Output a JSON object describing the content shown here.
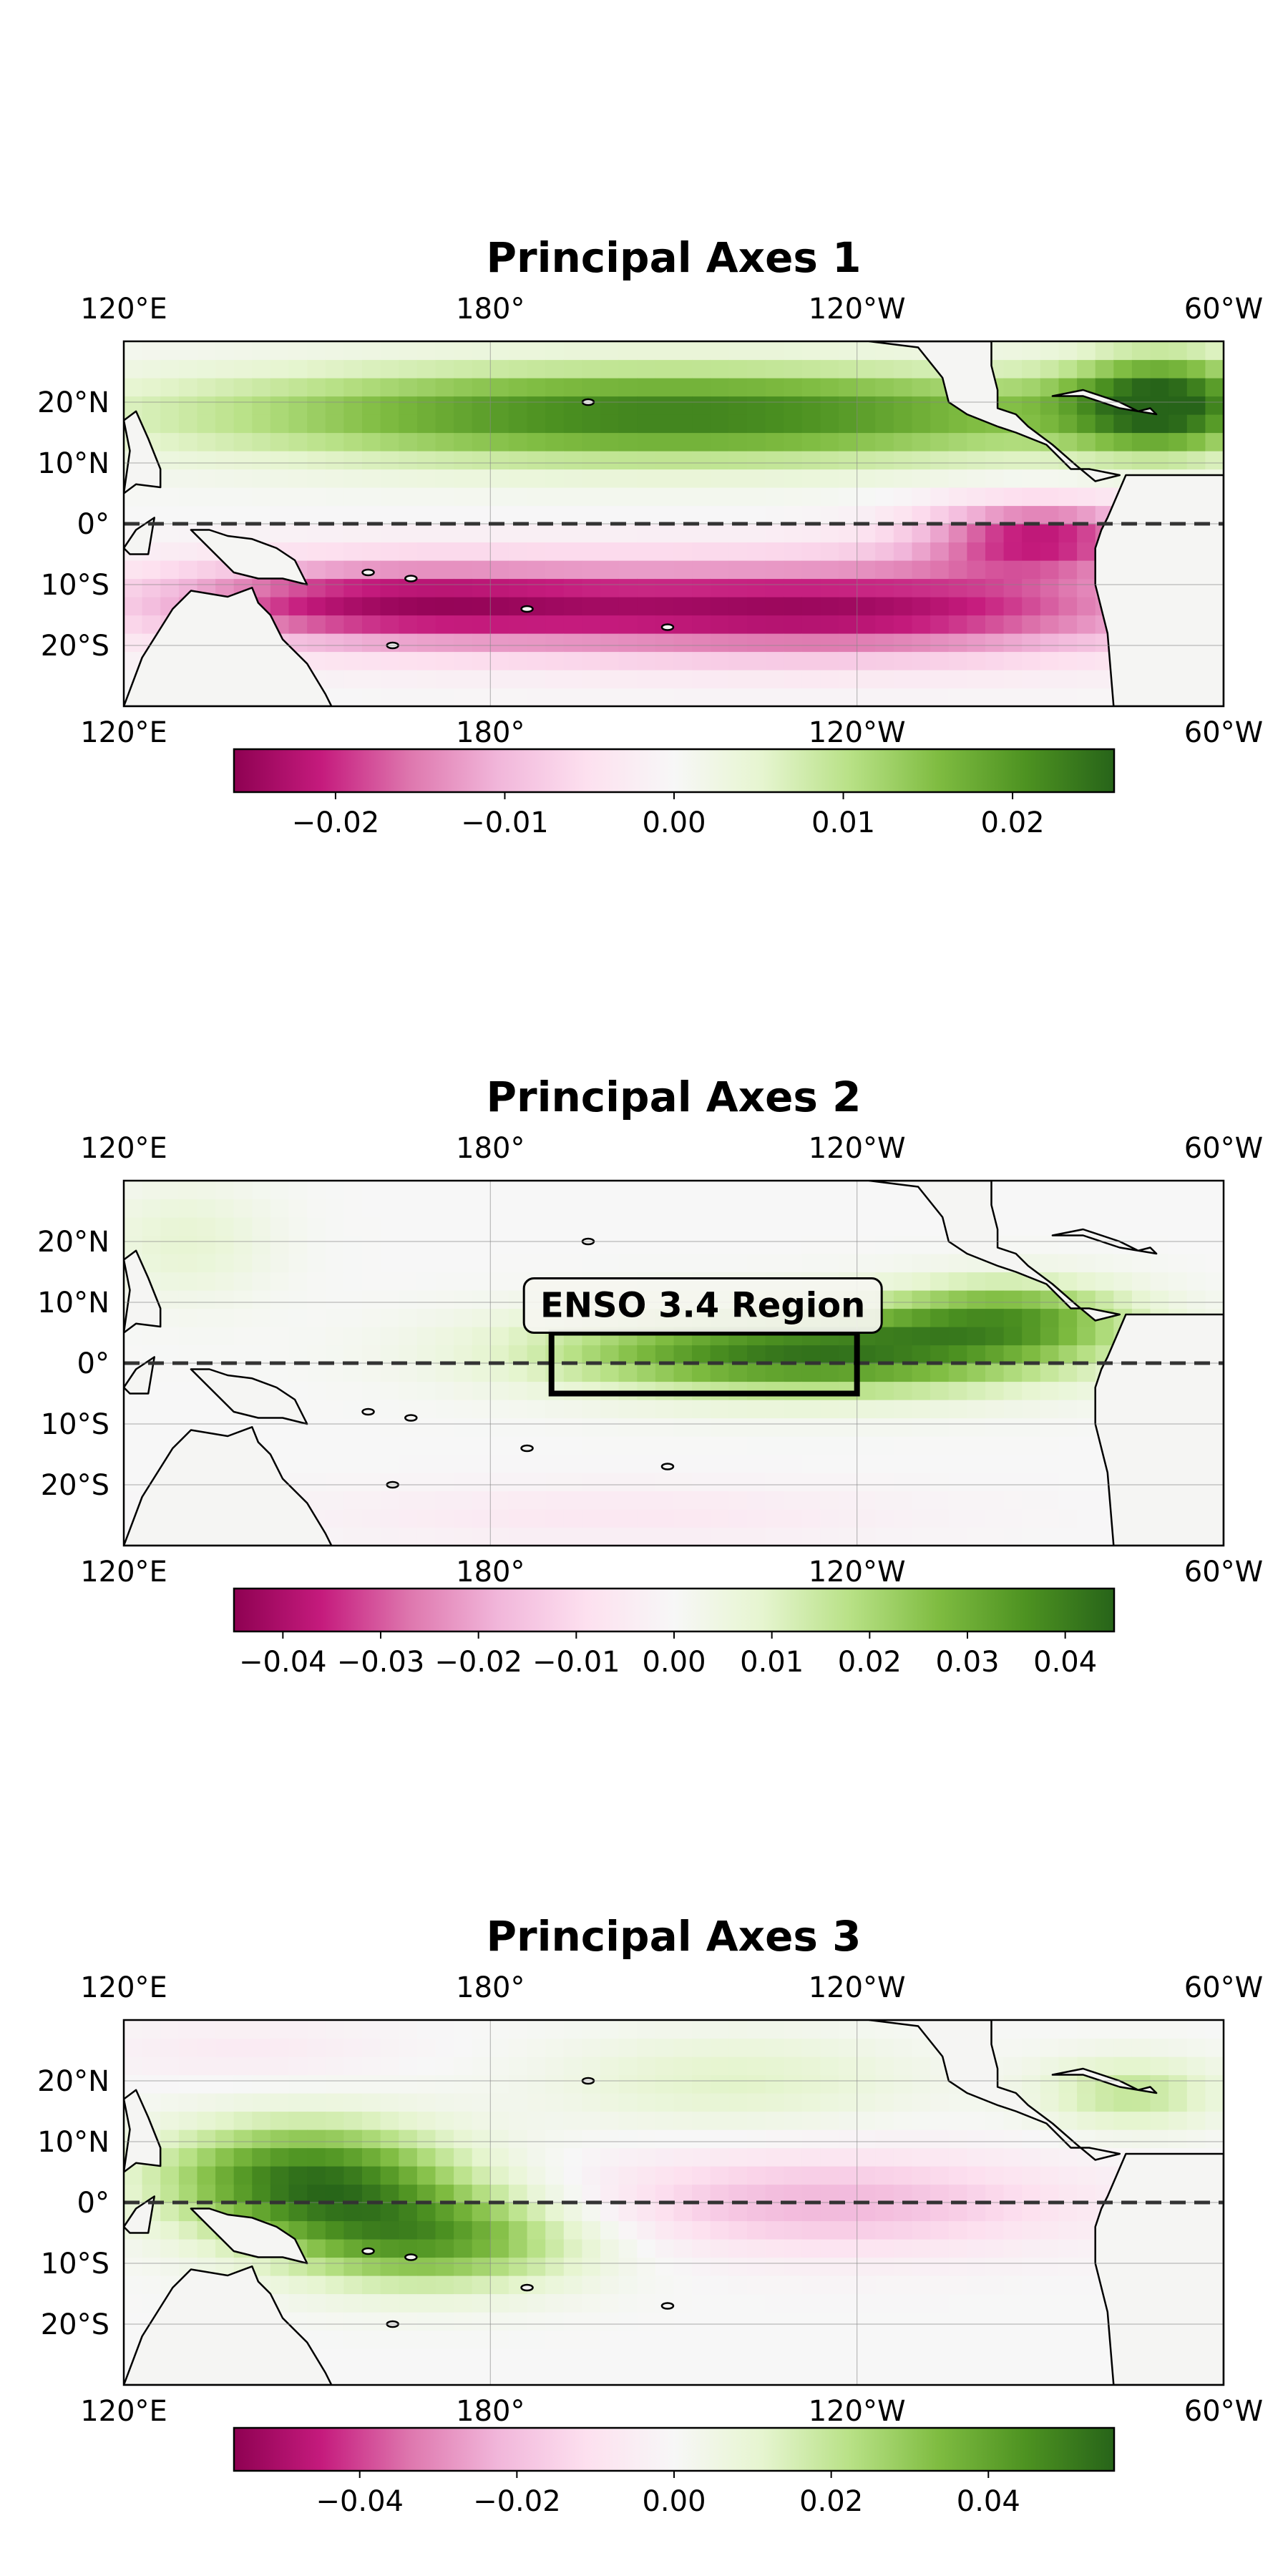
{
  "chart_data": [
    {
      "type": "heatmap",
      "title": "Principal Axes 1",
      "map_extent": {
        "lon": [
          120,
          300
        ],
        "lat": [
          -30,
          30
        ]
      },
      "x_ticks": [
        "120°E",
        "180°",
        "120°W",
        "60°W"
      ],
      "x_tick_values": [
        120,
        180,
        240,
        300
      ],
      "y_ticks": [
        "20°N",
        "10°N",
        "0°",
        "10°S",
        "20°S"
      ],
      "y_tick_values": [
        20,
        10,
        0,
        -10,
        -20
      ],
      "grid": true,
      "equator_line": "dashed",
      "colormap": "PiYG",
      "colorbar": {
        "range": [
          -0.026,
          0.026
        ],
        "tick_values": [
          -0.02,
          -0.01,
          0.0,
          0.01,
          0.02
        ],
        "tick_labels": [
          "−0.02",
          "−0.01",
          "0.00",
          "0.01",
          "0.02"
        ]
      },
      "pattern": {
        "components": [
          {
            "lon": 210,
            "lat": 18,
            "sigma_lon": 80,
            "sigma_lat": 8,
            "value": 0.023
          },
          {
            "lon": 235,
            "lat": -14,
            "sigma_lon": 60,
            "sigma_lat": 8,
            "value": -0.024
          },
          {
            "lon": 160,
            "lat": -13,
            "sigma_lon": 40,
            "sigma_lat": 7,
            "value": -0.019
          },
          {
            "lon": 270,
            "lat": -2,
            "sigma_lon": 20,
            "sigma_lat": 6,
            "value": -0.02
          },
          {
            "lon": 290,
            "lat": 20,
            "sigma_lon": 15,
            "sigma_lat": 8,
            "value": 0.022
          }
        ],
        "clip": 0.026
      }
    },
    {
      "type": "heatmap",
      "title": "Principal Axes 2",
      "map_extent": {
        "lon": [
          120,
          300
        ],
        "lat": [
          -30,
          30
        ]
      },
      "x_ticks": [
        "120°E",
        "180°",
        "120°W",
        "60°W"
      ],
      "x_tick_values": [
        120,
        180,
        240,
        300
      ],
      "y_ticks": [
        "20°N",
        "10°N",
        "0°",
        "10°S",
        "20°S"
      ],
      "y_tick_values": [
        20,
        10,
        0,
        -10,
        -20
      ],
      "grid": true,
      "equator_line": "dashed",
      "colormap": "PiYG",
      "colorbar": {
        "range": [
          -0.045,
          0.045
        ],
        "tick_values": [
          -0.04,
          -0.03,
          -0.02,
          -0.01,
          0.0,
          0.01,
          0.02,
          0.03,
          0.04
        ],
        "tick_labels": [
          "−0.04",
          "−0.03",
          "−0.02",
          "−0.01",
          "0.00",
          "0.01",
          "0.02",
          "0.03",
          "0.04"
        ]
      },
      "annotation": {
        "label": "ENSO 3.4 Region",
        "region": {
          "lon": [
            190,
            240
          ],
          "lat": [
            -5,
            5
          ]
        }
      },
      "pattern": {
        "components": [
          {
            "lon": 232,
            "lat": 2,
            "sigma_lon": 42,
            "sigma_lat": 7,
            "value": 0.042
          },
          {
            "lon": 265,
            "lat": 8,
            "sigma_lon": 20,
            "sigma_lat": 6,
            "value": 0.025
          },
          {
            "lon": 130,
            "lat": 20,
            "sigma_lon": 15,
            "sigma_lat": 10,
            "value": 0.008
          },
          {
            "lon": 200,
            "lat": -25,
            "sigma_lon": 50,
            "sigma_lat": 5,
            "value": -0.006
          }
        ],
        "clip": 0.045
      }
    },
    {
      "type": "heatmap",
      "title": "Principal Axes 3",
      "map_extent": {
        "lon": [
          120,
          300
        ],
        "lat": [
          -30,
          30
        ]
      },
      "x_ticks": [
        "120°E",
        "180°",
        "120°W",
        "60°W"
      ],
      "x_tick_values": [
        120,
        180,
        240,
        300
      ],
      "y_ticks": [
        "20°N",
        "10°N",
        "0°",
        "10°S",
        "20°S"
      ],
      "y_tick_values": [
        20,
        10,
        0,
        -10,
        -20
      ],
      "grid": true,
      "equator_line": "dashed",
      "colormap": "PiYG",
      "colorbar": {
        "range": [
          -0.056,
          0.056
        ],
        "tick_values": [
          -0.04,
          -0.02,
          0.0,
          0.02,
          0.04
        ],
        "tick_labels": [
          "−0.04",
          "−0.02",
          "0.00",
          "0.02",
          "0.04"
        ]
      },
      "pattern": {
        "components": [
          {
            "lon": 150,
            "lat": 4,
            "sigma_lon": 24,
            "sigma_lat": 9,
            "value": 0.05
          },
          {
            "lon": 170,
            "lat": -6,
            "sigma_lon": 25,
            "sigma_lat": 8,
            "value": 0.04
          },
          {
            "lon": 235,
            "lat": 0,
            "sigma_lon": 40,
            "sigma_lat": 8,
            "value": -0.022
          },
          {
            "lon": 220,
            "lat": 20,
            "sigma_lon": 30,
            "sigma_lat": 8,
            "value": 0.012
          },
          {
            "lon": 285,
            "lat": 18,
            "sigma_lon": 15,
            "sigma_lat": 6,
            "value": 0.02
          },
          {
            "lon": 140,
            "lat": 25,
            "sigma_lon": 25,
            "sigma_lat": 5,
            "value": -0.006
          }
        ],
        "clip": 0.056
      }
    }
  ]
}
